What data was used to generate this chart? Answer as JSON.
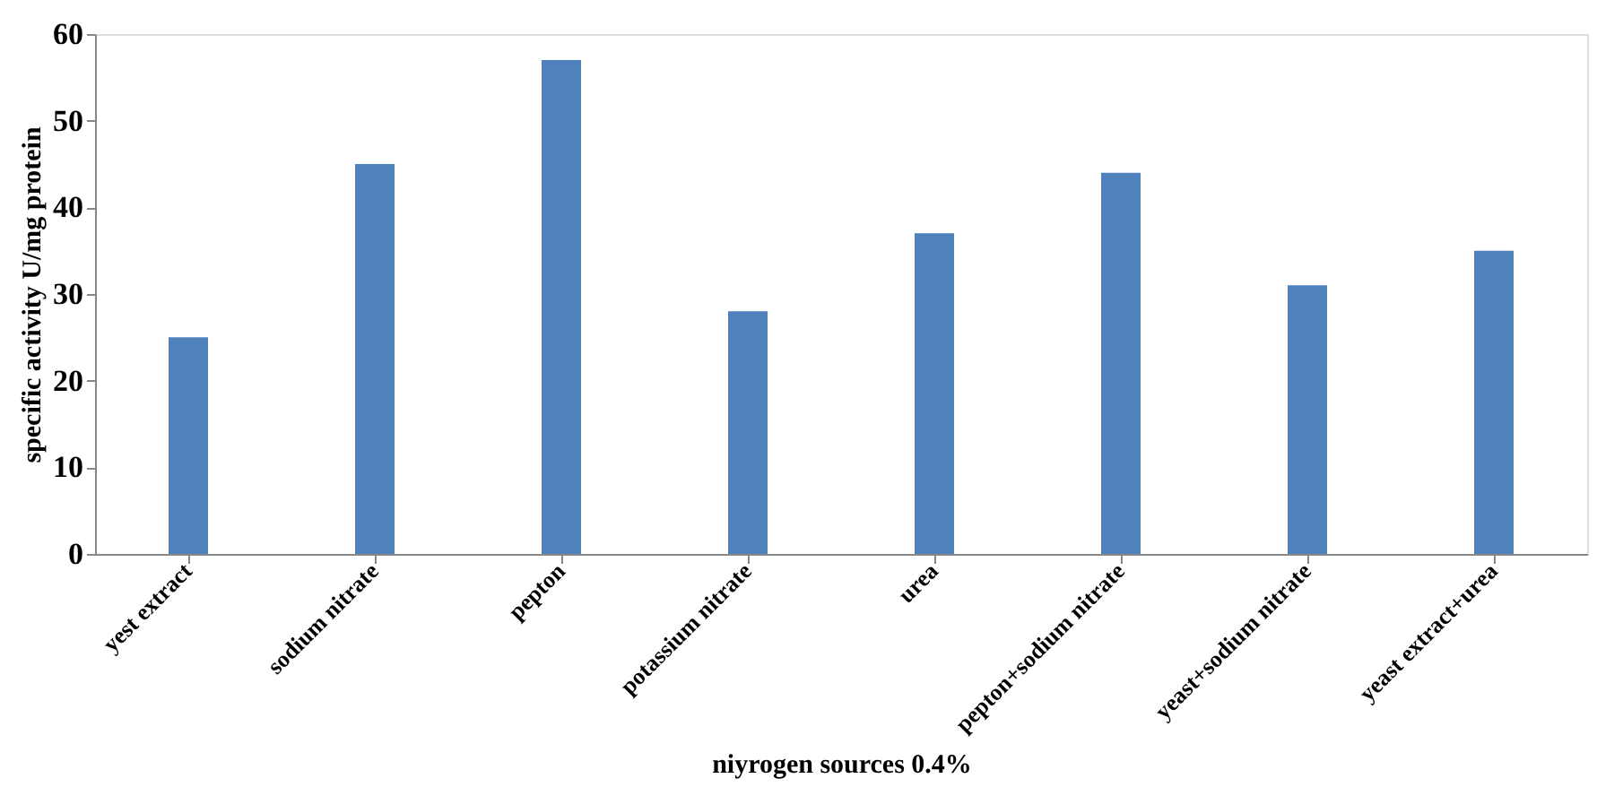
{
  "chart_data": {
    "type": "bar",
    "xlabel": "niyrogen sources 0.4%",
    "ylabel": "specific  activity U/mg protein",
    "categories": [
      "yest extract",
      "sodium nitrate",
      "pepton",
      "potassium nitrate",
      "urea",
      "pepton+sodium nitrate",
      "yeast+sodium nitrate",
      "yeast extract+urea"
    ],
    "values": [
      25,
      45,
      57,
      28,
      37,
      44,
      31,
      35
    ],
    "color": "#4f81bd",
    "ylim": [
      0,
      60
    ],
    "yticks": [
      0,
      10,
      20,
      30,
      40,
      50,
      60
    ],
    "grid": false
  }
}
